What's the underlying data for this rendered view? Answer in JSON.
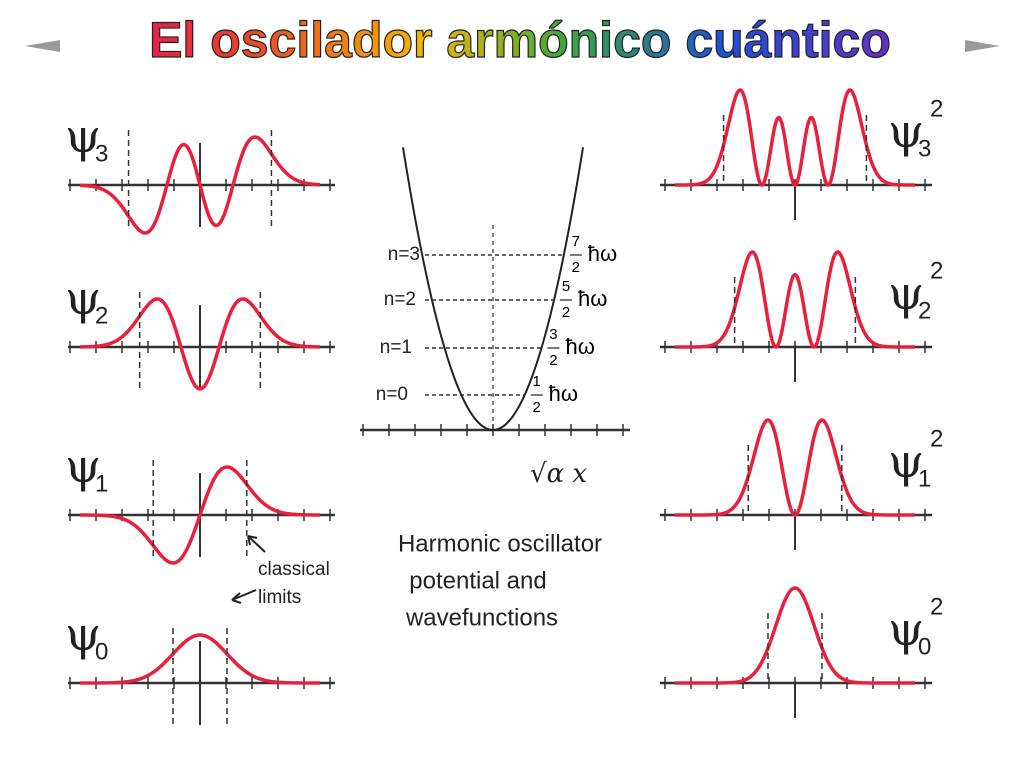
{
  "title": "El oscilador armónico cuántico",
  "left_labels": [
    {
      "symbol": "ψ",
      "sub": "3"
    },
    {
      "symbol": "ψ",
      "sub": "2"
    },
    {
      "symbol": "ψ",
      "sub": "1"
    },
    {
      "symbol": "ψ",
      "sub": "0"
    }
  ],
  "right_labels": [
    {
      "symbol": "ψ",
      "sub": "3",
      "sup": "2"
    },
    {
      "symbol": "ψ",
      "sub": "2",
      "sup": "2"
    },
    {
      "symbol": "ψ",
      "sub": "1",
      "sup": "2"
    },
    {
      "symbol": "ψ",
      "sub": "0",
      "sup": "2"
    }
  ],
  "levels": [
    {
      "n": "n=3",
      "numerator": "7",
      "denominator": "2",
      "unit": "ħω"
    },
    {
      "n": "n=2",
      "numerator": "5",
      "denominator": "2",
      "unit": "ħω"
    },
    {
      "n": "n=1",
      "numerator": "3",
      "denominator": "2",
      "unit": "ħω"
    },
    {
      "n": "n=0",
      "numerator": "1",
      "denominator": "2",
      "unit": "ħω"
    }
  ],
  "axis_label": "√α x",
  "caption": [
    "Harmonic oscillator",
    "potential and",
    "wavefunctions"
  ],
  "annotation": [
    "classical",
    "limits"
  ]
}
